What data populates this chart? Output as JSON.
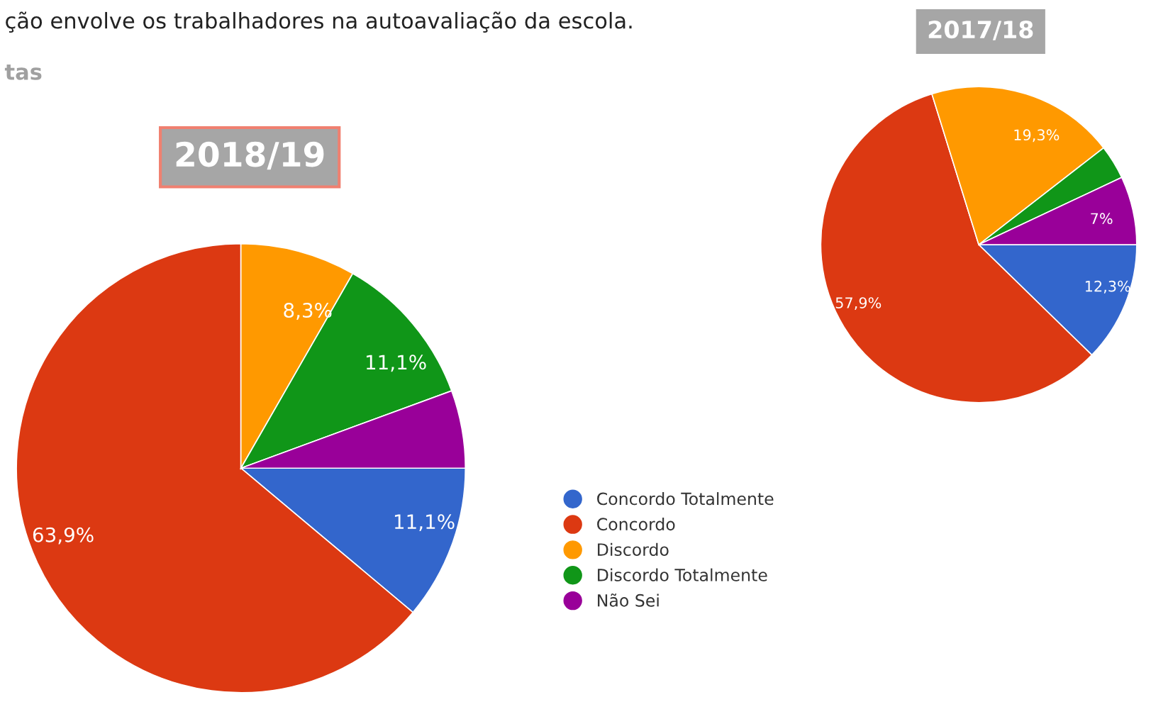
{
  "chart_data": [
    {
      "type": "pie",
      "title": "2018/19",
      "annotations": [
        "ção envolve os trabalhadores na autoavaliação da escola.",
        "tas"
      ],
      "legend": "right",
      "categories": [
        "Concordo Totalmente",
        "Concordo",
        "Discordo",
        "Discordo Totalmente",
        "Não Sei"
      ],
      "values": [
        11.1,
        63.9,
        8.3,
        11.1,
        5.6
      ],
      "value_labels": [
        "11,1%",
        "63,9%",
        "8,3%",
        "11,1%",
        null
      ],
      "colors": [
        "#3366cc",
        "#dc3912",
        "#ff9900",
        "#109618",
        "#990099"
      ]
    },
    {
      "type": "pie",
      "title": "2017/18",
      "categories": [
        null,
        null,
        null,
        null,
        null
      ],
      "values": [
        12.3,
        57.9,
        19.3,
        3.5,
        7
      ],
      "value_labels": [
        "12,3%",
        "57,9%",
        "19,3%",
        null,
        "7%"
      ],
      "colors": [
        "#3366cc",
        "#dc3912",
        "#ff9900",
        "#109618",
        "#990099"
      ]
    }
  ]
}
